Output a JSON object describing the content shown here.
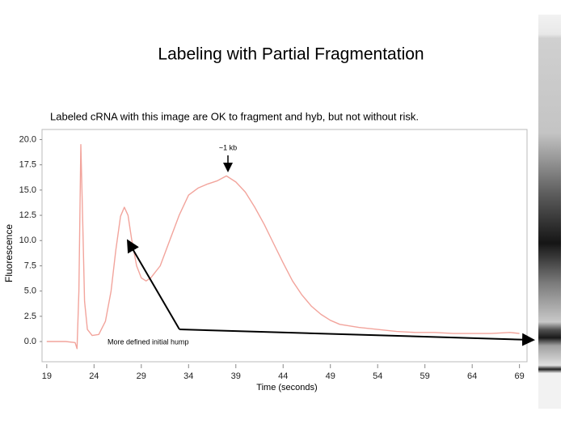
{
  "chart_data": {
    "type": "line",
    "title": "Labeling with Partial Fragmentation",
    "subtitle": "Labeled cRNA with this image are OK to fragment and hyb, but not without risk.",
    "x_label": "Time (seconds)",
    "y_label": "Fluorescence",
    "annotations": [
      "~1 kb",
      "More defined initial hump"
    ],
    "x": [
      19,
      20,
      21,
      22,
      22.2,
      22.4,
      22.6,
      22.8,
      23,
      23.3,
      23.8,
      24.5,
      25.2,
      25.8,
      26.3,
      26.8,
      27.2,
      27.6,
      28,
      28.5,
      29,
      29.5,
      30,
      31,
      32,
      33,
      34,
      35,
      36,
      37,
      38,
      39,
      40,
      41,
      42,
      43,
      44,
      45,
      46,
      47,
      48,
      49,
      50,
      52,
      54,
      56,
      58,
      60,
      62,
      64,
      66,
      68,
      69
    ],
    "series": [
      {
        "name": "Fluorescence",
        "color": "#f2a49c",
        "values": [
          0,
          0,
          0,
          -0.1,
          -0.7,
          5,
          19.5,
          12,
          4,
          1.2,
          0.6,
          0.7,
          2,
          5,
          9,
          12.4,
          13.3,
          12.5,
          10,
          7.5,
          6.3,
          6,
          6.3,
          7.5,
          10,
          12.5,
          14.5,
          15.2,
          15.6,
          15.9,
          16.4,
          15.8,
          14.8,
          13.3,
          11.6,
          9.7,
          7.8,
          6,
          4.6,
          3.5,
          2.7,
          2.1,
          1.7,
          1.4,
          1.2,
          1,
          0.9,
          0.9,
          0.8,
          0.8,
          0.8,
          0.9,
          0.8
        ]
      }
    ],
    "xlim": [
      18.5,
      69.8
    ],
    "ylim": [
      -2,
      21
    ],
    "xticks": [
      19,
      24,
      29,
      34,
      39,
      44,
      49,
      54,
      59,
      64,
      69
    ],
    "yticks": [
      {
        "value": 0,
        "label": "0.0"
      },
      {
        "value": 2.5,
        "label": "2.5"
      },
      {
        "value": 5,
        "label": "5.0"
      },
      {
        "value": 7.5,
        "label": "7.5"
      },
      {
        "value": 10,
        "label": "10.0"
      },
      {
        "value": 12.5,
        "label": "12.5"
      },
      {
        "value": 15,
        "label": "15.0"
      },
      {
        "value": 17.5,
        "label": "17.5"
      },
      {
        "value": 20,
        "label": "20.0"
      }
    ],
    "grid": false
  }
}
